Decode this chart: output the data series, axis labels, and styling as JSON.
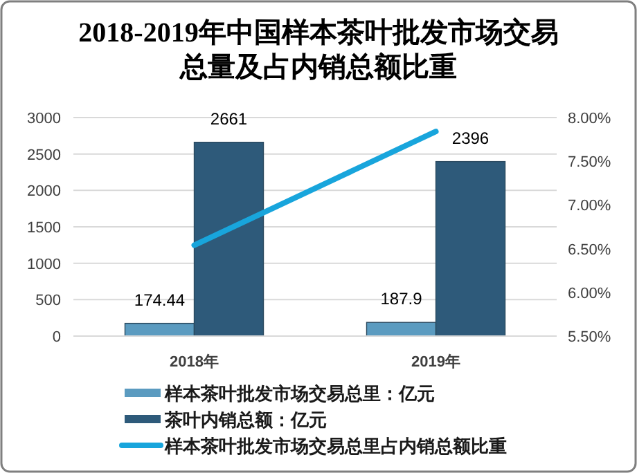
{
  "chart_data": {
    "type": "bar",
    "title": "2018-2019年中国样本茶叶批发市场交易总量及占内销总额比重",
    "categories": [
      "2018年",
      "2019年"
    ],
    "series": [
      {
        "name": "样本茶叶批发市场交易总里：亿元",
        "color": "#5b9bc0",
        "values": [
          174.44,
          187.9
        ]
      },
      {
        "name": "茶叶内销总额：亿元",
        "color": "#2e5a7a",
        "values": [
          2661,
          2396
        ]
      },
      {
        "name": "样本茶叶批发市场交易总里占内销总额比重",
        "type": "line",
        "axis": "y2",
        "color": "#18a5dc",
        "values": [
          6.54,
          7.84
        ]
      }
    ],
    "ylim": [
      0,
      3000
    ],
    "yticks": [
      0,
      500,
      1000,
      1500,
      2000,
      2500,
      3000
    ],
    "y2lim": [
      5.5,
      8.0
    ],
    "y2ticks": [
      {
        "value": 5.5,
        "label": "5.50%"
      },
      {
        "value": 6.0,
        "label": "6.00%"
      },
      {
        "value": 6.5,
        "label": "6.50%"
      },
      {
        "value": 7.0,
        "label": "7.00%"
      },
      {
        "value": 7.5,
        "label": "7.50%"
      },
      {
        "value": 8.0,
        "label": "8.00%"
      }
    ],
    "value_labels": [
      [
        "174.44",
        "187.9"
      ],
      [
        "2661",
        "2396"
      ],
      null
    ],
    "grid": "y",
    "legend": "bottom",
    "marker": "none",
    "line_style": "solid"
  }
}
